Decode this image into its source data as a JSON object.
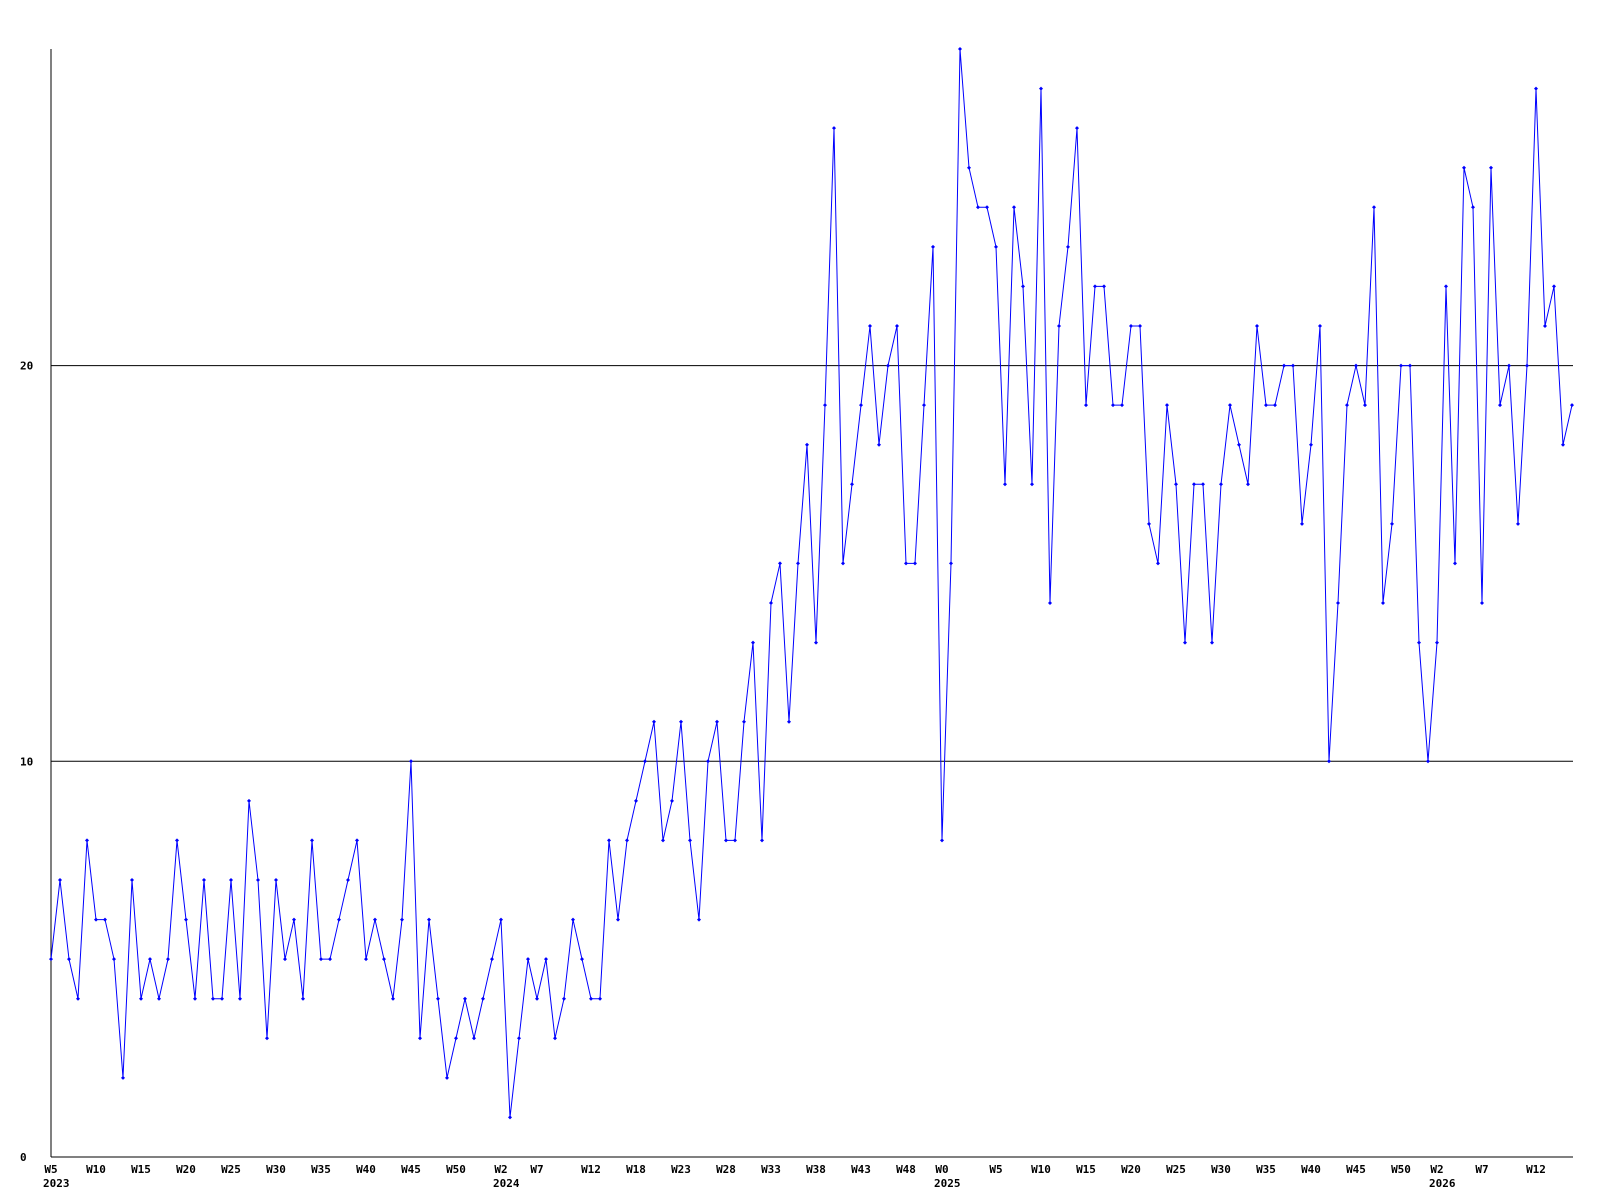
{
  "chart_data": {
    "type": "line",
    "categories": [
      "W5",
      null,
      null,
      null,
      null,
      "W10",
      null,
      null,
      null,
      null,
      "W15",
      null,
      null,
      null,
      null,
      "W20",
      null,
      null,
      null,
      null,
      "W25",
      null,
      null,
      null,
      null,
      "W30",
      null,
      null,
      null,
      null,
      "W35",
      null,
      null,
      null,
      null,
      "W40",
      null,
      null,
      null,
      null,
      "W45",
      null,
      null,
      null,
      null,
      "W50",
      null,
      null,
      null,
      null,
      "W2",
      null,
      null,
      null,
      "W7",
      null,
      null,
      null,
      null,
      null,
      "W12",
      null,
      null,
      null,
      null,
      "W18",
      null,
      null,
      null,
      null,
      "W23",
      null,
      null,
      null,
      null,
      "W28",
      null,
      null,
      null,
      null,
      "W33",
      null,
      null,
      null,
      null,
      "W38",
      null,
      null,
      null,
      null,
      "W43",
      null,
      null,
      null,
      null,
      "W48",
      null,
      null,
      null,
      "W0",
      null,
      null,
      null,
      null,
      null,
      "W5",
      null,
      null,
      null,
      null,
      "W10",
      null,
      null,
      null,
      null,
      "W15",
      null,
      null,
      null,
      null,
      "W20",
      null,
      null,
      null,
      null,
      "W25",
      null,
      null,
      null,
      null,
      "W30",
      null,
      null,
      null,
      null,
      "W35",
      null,
      null,
      null,
      null,
      "W40",
      null,
      null,
      null,
      null,
      "W45",
      null,
      null,
      null,
      null,
      "W50",
      null,
      null,
      null,
      "W2",
      null,
      null,
      null,
      null,
      "W7",
      null,
      null,
      null,
      null,
      null,
      "W12",
      null,
      null,
      null,
      null
    ],
    "category_years": [
      "2023",
      null,
      null,
      null,
      null,
      null,
      null,
      null,
      null,
      null,
      null,
      null,
      null,
      null,
      null,
      null,
      null,
      null,
      null,
      null,
      null,
      null,
      null,
      null,
      null,
      null,
      null,
      null,
      null,
      null,
      null,
      null,
      null,
      null,
      null,
      null,
      null,
      null,
      null,
      null,
      null,
      null,
      null,
      null,
      null,
      null,
      null,
      null,
      null,
      null,
      "2024",
      null,
      null,
      null,
      null,
      null,
      null,
      null,
      null,
      null,
      null,
      null,
      null,
      null,
      null,
      null,
      null,
      null,
      null,
      null,
      null,
      null,
      null,
      null,
      null,
      null,
      null,
      null,
      null,
      null,
      null,
      null,
      null,
      null,
      null,
      null,
      null,
      null,
      null,
      null,
      null,
      null,
      null,
      null,
      null,
      null,
      null,
      null,
      null,
      "2025",
      null,
      null,
      null,
      null,
      null,
      null,
      null,
      null,
      null,
      null,
      null,
      null,
      null,
      null,
      null,
      null,
      null,
      null,
      null,
      null,
      null,
      null,
      null,
      null,
      null,
      null,
      null,
      null,
      null,
      null,
      null,
      null,
      null,
      null,
      null,
      null,
      null,
      null,
      null,
      null,
      null,
      null,
      null,
      null,
      null,
      null,
      null,
      null,
      null,
      null,
      null,
      null,
      null,
      null,
      "2026",
      null,
      null,
      null,
      null,
      null,
      null,
      null,
      null,
      null,
      null,
      null,
      null,
      null,
      null,
      null
    ],
    "series": [
      {
        "color": "#0000ff",
        "values": [
          5,
          7,
          5,
          4,
          8,
          6,
          6,
          5,
          2,
          7,
          4,
          5,
          4,
          5,
          8,
          6,
          4,
          7,
          4,
          4,
          7,
          4,
          9,
          7,
          3,
          7,
          5,
          6,
          4,
          8,
          5,
          5,
          6,
          7,
          8,
          5,
          6,
          5,
          4,
          6,
          10,
          3,
          6,
          4,
          2,
          3,
          4,
          3,
          4,
          5,
          6,
          1,
          3,
          5,
          4,
          5,
          3,
          4,
          6,
          5,
          4,
          4,
          8,
          6,
          8,
          9,
          10,
          11,
          8,
          9,
          11,
          8,
          6,
          10,
          11,
          8,
          8,
          11,
          13,
          8,
          14,
          15,
          11,
          15,
          18,
          13,
          19,
          26,
          15,
          17,
          19,
          21,
          18,
          20,
          21,
          15,
          15,
          19,
          23,
          8,
          15,
          28,
          25,
          24,
          24,
          23,
          17,
          24,
          22,
          17,
          27,
          14,
          21,
          23,
          26,
          19,
          22,
          22,
          19,
          19,
          21,
          21,
          16,
          15,
          19,
          17,
          13,
          17,
          17,
          13,
          17,
          19,
          18,
          17,
          21,
          19,
          19,
          20,
          20,
          16,
          18,
          21,
          10,
          14,
          19,
          20,
          19,
          24,
          14,
          16,
          20,
          20,
          13,
          10,
          13,
          22,
          15,
          25,
          24,
          14,
          25,
          19,
          20,
          16,
          20,
          27,
          21,
          22,
          18,
          19
        ]
      }
    ],
    "ylim": [
      0,
      28
    ],
    "yticks": [
      0,
      10,
      20
    ],
    "grid": true
  }
}
